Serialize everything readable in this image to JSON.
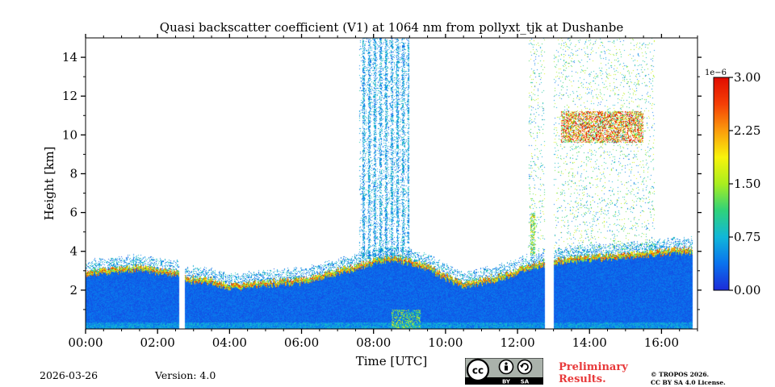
{
  "title": "Quasi backscatter coefficient (V1) at 1064 nm from pollyxt_tjk at Dushanbe",
  "footer": {
    "date": "2026-03-26",
    "version": "Version: 4.0",
    "preliminary": [
      "Preliminary",
      "Results."
    ],
    "copyright": [
      "© TROPOS 2026.",
      "CC BY SA 4.0 License."
    ],
    "license_badge": {
      "cc": "cc",
      "by": "BY",
      "sa": "SA"
    }
  },
  "chart_data": {
    "type": "heatmap",
    "title": "Quasi backscatter coefficient (V1) at 1064 nm from pollyxt_tjk at Dushanbe",
    "xlabel": "Time [UTC]",
    "ylabel": "Height [km]",
    "x_unit": "hours UTC",
    "xlim": [
      0,
      17
    ],
    "ylim": [
      0,
      15
    ],
    "x_ticks": [
      {
        "value": 0,
        "label": "00:00"
      },
      {
        "value": 2,
        "label": "02:00"
      },
      {
        "value": 4,
        "label": "04:00"
      },
      {
        "value": 6,
        "label": "06:00"
      },
      {
        "value": 8,
        "label": "08:00"
      },
      {
        "value": 10,
        "label": "10:00"
      },
      {
        "value": 12,
        "label": "12:00"
      },
      {
        "value": 14,
        "label": "14:00"
      },
      {
        "value": 16,
        "label": "16:00"
      }
    ],
    "y_ticks": [
      {
        "value": 2,
        "label": "2"
      },
      {
        "value": 4,
        "label": "4"
      },
      {
        "value": 6,
        "label": "6"
      },
      {
        "value": 8,
        "label": "8"
      },
      {
        "value": 10,
        "label": "10"
      },
      {
        "value": 12,
        "label": "12"
      },
      {
        "value": 14,
        "label": "14"
      }
    ],
    "colorbar": {
      "min": 0,
      "max": 3.0,
      "scale_label": "1e−6",
      "ticks": [
        {
          "value": 0.0,
          "label": "0.00"
        },
        {
          "value": 0.75,
          "label": "0.75"
        },
        {
          "value": 1.5,
          "label": "1.50"
        },
        {
          "value": 2.25,
          "label": "2.25"
        },
        {
          "value": 3.0,
          "label": "3.00"
        }
      ],
      "colormap": [
        "#1c2bd8",
        "#0a72ee",
        "#11b7d9",
        "#2fd27a",
        "#a9ee1f",
        "#f8f30b",
        "#fb9c0c",
        "#f53f06",
        "#e00c00"
      ]
    },
    "data_coverage_hours": [
      0,
      16.85
    ],
    "gaps": [
      [
        2.6,
        2.75
      ],
      [
        12.75,
        13.0
      ]
    ],
    "layers": [
      {
        "name": "boundary layer",
        "x": [
          0,
          0.5,
          1,
          1.5,
          2,
          2.6,
          2.75,
          3.5,
          4,
          5,
          6,
          7,
          7.5,
          8,
          8.5,
          9,
          9.5,
          10,
          10.5,
          11,
          11.5,
          12,
          12.4,
          13,
          14,
          15,
          16,
          16.85
        ],
        "top_km": [
          3.0,
          3.1,
          3.2,
          3.3,
          3.1,
          3.0,
          2.7,
          2.6,
          2.3,
          2.5,
          2.6,
          3.1,
          3.3,
          3.6,
          3.8,
          3.6,
          3.3,
          2.8,
          2.4,
          2.6,
          2.8,
          3.1,
          3.4,
          3.6,
          3.8,
          3.9,
          4.1,
          4.2
        ],
        "typical_value": 0.3
      },
      {
        "name": "high cirrus cloud",
        "x_start": 13.2,
        "x_end": 15.5,
        "base_km": 9.6,
        "top_km": 11.2,
        "typical_value": 2.1
      },
      {
        "name": "aerosol plume columns",
        "x_start": 7.6,
        "x_end": 9.0,
        "base_km": 3.6,
        "top_km": 15.0,
        "typical_value": 0.6
      },
      {
        "name": "elevated layer",
        "x_start": 12.35,
        "x_end": 12.5,
        "base_km": 3.8,
        "top_km": 6.0,
        "typical_value": 1.4
      },
      {
        "name": "thin layer near ground",
        "x_start": 8.5,
        "x_end": 9.3,
        "base_km": 0.0,
        "top_km": 1.0,
        "typical_value": 1.2
      }
    ]
  }
}
